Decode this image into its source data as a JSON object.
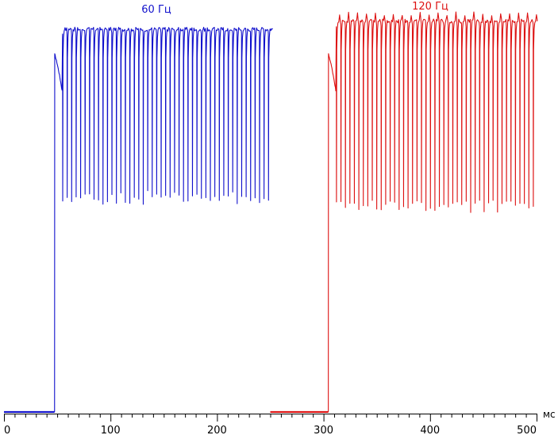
{
  "chart_data": {
    "type": "line",
    "title": "",
    "xlabel": "мс",
    "ylabel": "",
    "xlim": [
      0,
      500
    ],
    "ylim": [
      0,
      1
    ],
    "grid": false,
    "x_ticks": [
      "0",
      "100",
      "200",
      "300",
      "400",
      "500"
    ],
    "annotations": [
      "60 Гц",
      "120 Гц"
    ],
    "series": [
      {
        "name": "60 Гц",
        "color": "#1111cc",
        "x_range": [
          0,
          250
        ],
        "step_on_ms": 47.5,
        "refresh_hz": 60,
        "frame_period_ms": 16.7,
        "dip_period_ms": 4.2,
        "settled_level": 0.94,
        "dip_min": 0.51
      },
      {
        "name": "120 Гц",
        "color": "#dd1111",
        "x_range": [
          250,
          500
        ],
        "step_on_ms": 304.5,
        "refresh_hz": 120,
        "frame_period_ms": 8.3,
        "dip_period_ms": 4.2,
        "settled_level": 0.96,
        "dip_min": 0.49
      }
    ]
  }
}
